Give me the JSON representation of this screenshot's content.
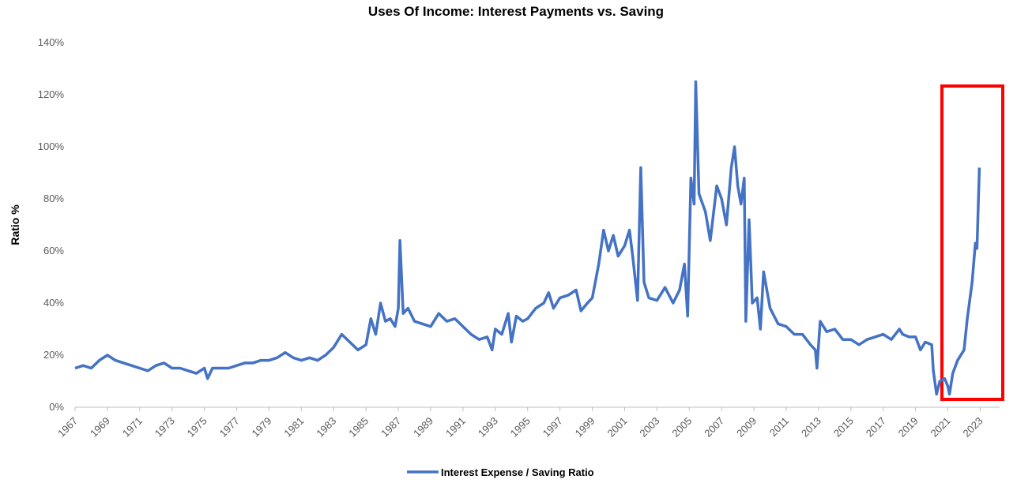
{
  "chart_data": {
    "type": "line",
    "title": "Uses Of Income: Interest Payments vs. Saving",
    "y_label": "Ratio %",
    "x": [
      1967,
      1967.5,
      1968,
      1968.5,
      1969,
      1969.5,
      1970,
      1970.5,
      1971,
      1971.5,
      1972,
      1972.5,
      1973,
      1973.5,
      1974,
      1974.5,
      1975,
      1975.2,
      1975.5,
      1976,
      1976.5,
      1977,
      1977.5,
      1978,
      1978.5,
      1979,
      1979.5,
      1980,
      1980.5,
      1981,
      1981.5,
      1982,
      1982.5,
      1983,
      1983.5,
      1984,
      1984.5,
      1985,
      1985.3,
      1985.6,
      1985.9,
      1986.2,
      1986.5,
      1986.8,
      1987,
      1987.1,
      1987.3,
      1987.6,
      1988,
      1988.5,
      1989,
      1989.5,
      1990,
      1990.5,
      1991,
      1991.5,
      1992,
      1992.5,
      1992.8,
      1993,
      1993.4,
      1993.8,
      1994,
      1994.3,
      1994.7,
      1995,
      1995.5,
      1996,
      1996.3,
      1996.6,
      1997,
      1997.5,
      1998,
      1998.3,
      1998.7,
      1999,
      1999.4,
      1999.7,
      2000,
      2000.3,
      2000.6,
      2001,
      2001.3,
      2001.5,
      2001.8,
      2002,
      2002.2,
      2002.5,
      2003,
      2003.5,
      2004,
      2004.4,
      2004.7,
      2004.9,
      2005.1,
      2005.3,
      2005.4,
      2005.6,
      2006,
      2006.3,
      2006.7,
      2007,
      2007.3,
      2007.6,
      2007.8,
      2008,
      2008.2,
      2008.4,
      2008.5,
      2008.7,
      2008.9,
      2009.2,
      2009.4,
      2009.6,
      2010,
      2010.5,
      2011,
      2011.5,
      2012,
      2012.5,
      2012.8,
      2012.9,
      2013.1,
      2013.5,
      2014,
      2014.5,
      2015,
      2015.5,
      2016,
      2016.5,
      2017,
      2017.5,
      2018,
      2018.2,
      2018.6,
      2019,
      2019.3,
      2019.6,
      2020,
      2020.1,
      2020.3,
      2020.5,
      2020.8,
      2021,
      2021.1,
      2021.3,
      2021.6,
      2022,
      2022.2,
      2022.5,
      2022.7,
      2022.8,
      2022.95
    ],
    "series": [
      {
        "name": "Interest Expense / Saving Ratio",
        "color": "#4472c4",
        "values": [
          15,
          16,
          15,
          18,
          20,
          18,
          17,
          16,
          15,
          14,
          16,
          17,
          15,
          15,
          14,
          13,
          15,
          11,
          15,
          15,
          15,
          16,
          17,
          17,
          18,
          18,
          19,
          21,
          19,
          18,
          19,
          18,
          20,
          23,
          28,
          25,
          22,
          24,
          34,
          28,
          40,
          33,
          34,
          31,
          38,
          64,
          36,
          38,
          33,
          32,
          31,
          36,
          33,
          34,
          31,
          28,
          26,
          27,
          22,
          30,
          28,
          36,
          25,
          35,
          33,
          34,
          38,
          40,
          44,
          38,
          42,
          43,
          45,
          37,
          40,
          42,
          55,
          68,
          60,
          66,
          58,
          62,
          68,
          58,
          41,
          92,
          48,
          42,
          41,
          46,
          40,
          45,
          55,
          35,
          88,
          78,
          125,
          82,
          75,
          64,
          85,
          80,
          70,
          92,
          100,
          85,
          78,
          88,
          33,
          72,
          40,
          42,
          30,
          52,
          38,
          32,
          31,
          28,
          28,
          24,
          22,
          15,
          33,
          29,
          30,
          26,
          26,
          24,
          26,
          27,
          28,
          26,
          30,
          28,
          27,
          27,
          22,
          25,
          24,
          14,
          5,
          10,
          11,
          8,
          5,
          13,
          18,
          22,
          34,
          48,
          63,
          61,
          92
        ]
      }
    ],
    "xlim": [
      1967,
      2024.2
    ],
    "xticks": [
      1967,
      1969,
      1971,
      1973,
      1975,
      1977,
      1979,
      1981,
      1983,
      1985,
      1987,
      1989,
      1991,
      1993,
      1995,
      1997,
      1999,
      2001,
      2003,
      2005,
      2007,
      2009,
      2011,
      2013,
      2015,
      2017,
      2019,
      2021,
      2023
    ],
    "ylim": [
      0,
      140
    ],
    "yticks": [
      {
        "value": 0,
        "label": "0%"
      },
      {
        "value": 20,
        "label": "20%"
      },
      {
        "value": 40,
        "label": "40%"
      },
      {
        "value": 60,
        "label": "60%"
      },
      {
        "value": 80,
        "label": "80%"
      },
      {
        "value": 100,
        "label": "100%"
      },
      {
        "value": 120,
        "label": "120%"
      },
      {
        "value": 140,
        "label": "140%"
      }
    ],
    "grid": false,
    "legend": "bottom"
  }
}
